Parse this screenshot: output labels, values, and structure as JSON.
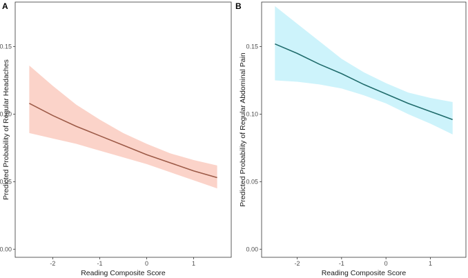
{
  "chart_data": [
    {
      "panel_label": "A",
      "type": "line",
      "xlabel": "Reading Composite Score",
      "ylabel": "Predicted Probability of Regular Headaches",
      "xlim": [
        -2.8,
        1.8
      ],
      "ylim": [
        -0.006,
        0.183
      ],
      "x_ticks": [
        -2,
        -1,
        0,
        1
      ],
      "x_tick_labels": [
        "-2",
        "-1",
        "0",
        "1"
      ],
      "y_ticks": [
        0.0,
        0.05,
        0.1,
        0.15
      ],
      "y_tick_labels": [
        "0.00",
        "0.05",
        "0.10",
        "0.15"
      ],
      "grid": false,
      "line_color": "#9c5a47",
      "band_color": "#fbd3c9",
      "series": [
        {
          "x": [
            -2.5,
            -2.0,
            -1.5,
            -1.0,
            -0.5,
            0.0,
            0.5,
            1.0,
            1.5
          ],
          "y": [
            0.108,
            0.099,
            0.091,
            0.084,
            0.077,
            0.07,
            0.064,
            0.058,
            0.053
          ],
          "lower": [
            0.086,
            0.082,
            0.078,
            0.073,
            0.068,
            0.063,
            0.057,
            0.051,
            0.045
          ],
          "upper": [
            0.136,
            0.121,
            0.107,
            0.096,
            0.086,
            0.078,
            0.071,
            0.066,
            0.062
          ]
        }
      ]
    },
    {
      "panel_label": "B",
      "type": "line",
      "xlabel": "Reading Composite Score",
      "ylabel": "Predicted Probability of Regular Abdominal Pain",
      "xlim": [
        -2.8,
        1.8
      ],
      "ylim": [
        -0.006,
        0.183
      ],
      "x_ticks": [
        -2,
        -1,
        0,
        1
      ],
      "x_tick_labels": [
        "-2",
        "-1",
        "0",
        "1"
      ],
      "y_ticks": [
        0.0,
        0.05,
        0.1,
        0.15
      ],
      "y_tick_labels": [
        "0.00",
        "0.05",
        "0.10",
        "0.15"
      ],
      "grid": false,
      "line_color": "#1f6b6b",
      "band_color": "#cdf3fb",
      "series": [
        {
          "x": [
            -2.5,
            -2.0,
            -1.5,
            -1.0,
            -0.5,
            0.0,
            0.5,
            1.0,
            1.5
          ],
          "y": [
            0.152,
            0.145,
            0.137,
            0.13,
            0.122,
            0.115,
            0.108,
            0.102,
            0.096
          ],
          "lower": [
            0.125,
            0.124,
            0.122,
            0.119,
            0.114,
            0.108,
            0.1,
            0.093,
            0.085
          ],
          "upper": [
            0.18,
            0.167,
            0.154,
            0.141,
            0.131,
            0.123,
            0.116,
            0.112,
            0.109
          ]
        }
      ]
    }
  ]
}
